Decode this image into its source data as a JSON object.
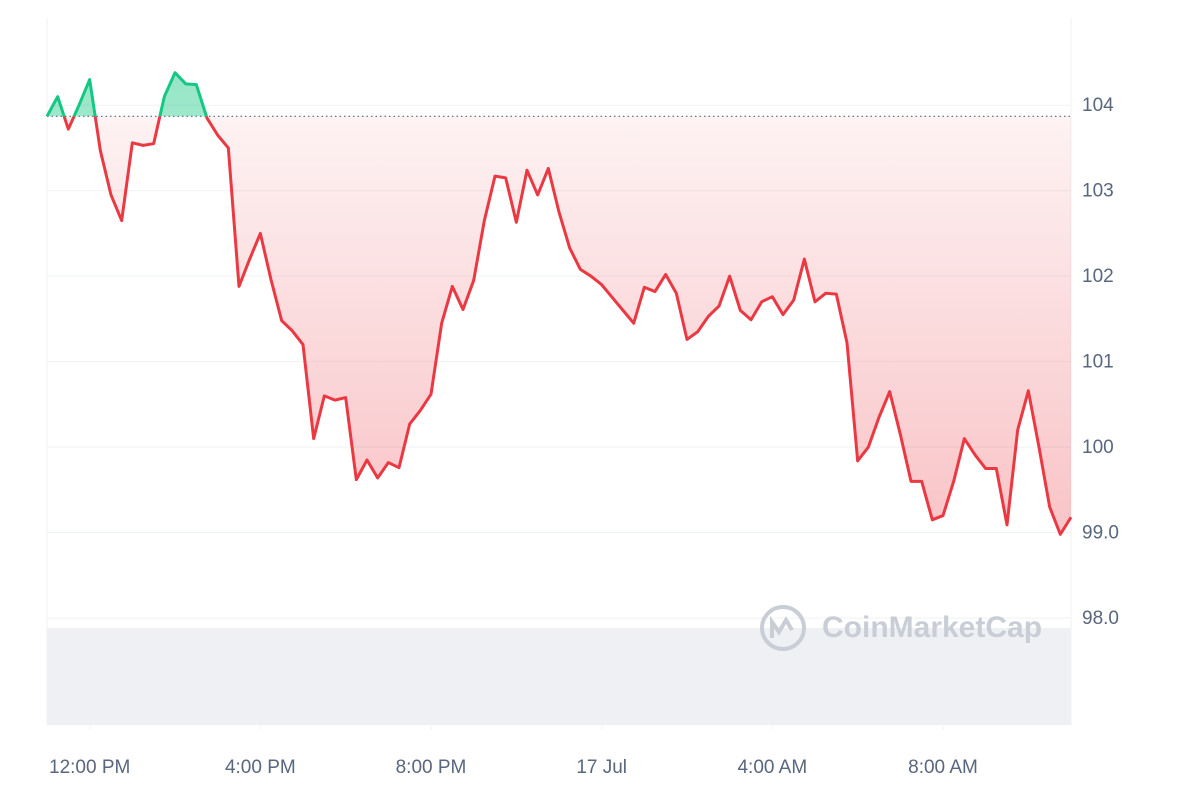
{
  "chart_data": {
    "type": "line",
    "watermark": "CoinMarketCap",
    "x": [
      "16 Jul 11:00",
      "16 Jul 11:15",
      "16 Jul 11:30",
      "16 Jul 11:45",
      "16 Jul 12:00",
      "16 Jul 12:15",
      "16 Jul 12:30",
      "16 Jul 12:45",
      "16 Jul 13:00",
      "16 Jul 13:15",
      "16 Jul 13:30",
      "16 Jul 13:45",
      "16 Jul 14:00",
      "16 Jul 14:15",
      "16 Jul 14:30",
      "16 Jul 14:45",
      "16 Jul 15:00",
      "16 Jul 15:15",
      "16 Jul 15:30",
      "16 Jul 15:45",
      "16 Jul 16:00",
      "16 Jul 16:15",
      "16 Jul 16:30",
      "16 Jul 16:45",
      "16 Jul 17:00",
      "16 Jul 17:15",
      "16 Jul 17:30",
      "16 Jul 17:45",
      "16 Jul 18:00",
      "16 Jul 18:15",
      "16 Jul 18:30",
      "16 Jul 18:45",
      "16 Jul 19:00",
      "16 Jul 19:15",
      "16 Jul 19:30",
      "16 Jul 19:45",
      "16 Jul 20:00",
      "16 Jul 20:15",
      "16 Jul 20:30",
      "16 Jul 20:45",
      "16 Jul 21:00",
      "16 Jul 21:15",
      "16 Jul 21:30",
      "16 Jul 21:45",
      "16 Jul 22:00",
      "16 Jul 22:15",
      "16 Jul 22:30",
      "16 Jul 22:45",
      "16 Jul 23:00",
      "16 Jul 23:15",
      "16 Jul 23:30",
      "16 Jul 23:45",
      "17 Jul 00:00",
      "17 Jul 00:15",
      "17 Jul 00:30",
      "17 Jul 00:45",
      "17 Jul 01:00",
      "17 Jul 01:15",
      "17 Jul 01:30",
      "17 Jul 01:45",
      "17 Jul 02:00",
      "17 Jul 02:15",
      "17 Jul 02:30",
      "17 Jul 02:45",
      "17 Jul 03:00",
      "17 Jul 03:15",
      "17 Jul 03:30",
      "17 Jul 03:45",
      "17 Jul 04:00",
      "17 Jul 04:15",
      "17 Jul 04:30",
      "17 Jul 04:45",
      "17 Jul 05:00",
      "17 Jul 05:15",
      "17 Jul 05:30",
      "17 Jul 05:45",
      "17 Jul 06:00",
      "17 Jul 06:15",
      "17 Jul 06:30",
      "17 Jul 06:45",
      "17 Jul 07:00",
      "17 Jul 07:15",
      "17 Jul 07:30",
      "17 Jul 07:45",
      "17 Jul 08:00",
      "17 Jul 08:15",
      "17 Jul 08:30",
      "17 Jul 08:45",
      "17 Jul 09:00",
      "17 Jul 09:15",
      "17 Jul 09:30",
      "17 Jul 09:45",
      "17 Jul 10:00",
      "17 Jul 10:15",
      "17 Jul 10:30",
      "17 Jul 10:45",
      "17 Jul 11:00"
    ],
    "values": [
      103.87,
      104.1,
      103.72,
      104.0,
      104.3,
      103.47,
      102.95,
      102.65,
      103.56,
      103.53,
      103.55,
      104.1,
      104.38,
      104.25,
      104.24,
      103.85,
      103.65,
      103.5,
      101.88,
      102.2,
      102.5,
      101.96,
      101.48,
      101.36,
      101.2,
      100.1,
      100.6,
      100.55,
      100.58,
      99.62,
      99.85,
      99.64,
      99.82,
      99.76,
      100.27,
      100.43,
      100.62,
      101.45,
      101.88,
      101.61,
      101.95,
      102.65,
      103.17,
      103.15,
      102.63,
      103.24,
      102.95,
      103.26,
      102.75,
      102.33,
      102.08,
      102.0,
      101.9,
      101.75,
      101.6,
      101.45,
      101.87,
      101.82,
      102.02,
      101.8,
      101.26,
      101.35,
      101.53,
      101.65,
      102.0,
      101.6,
      101.49,
      101.7,
      101.76,
      101.55,
      101.72,
      102.2,
      101.7,
      101.8,
      101.79,
      101.22,
      99.84,
      100.0,
      100.35,
      100.65,
      100.15,
      99.6,
      99.6,
      99.15,
      99.2,
      99.6,
      100.1,
      99.91,
      99.75,
      99.75,
      99.09,
      100.2,
      100.66,
      100.0,
      99.3,
      98.98,
      99.18
    ],
    "reference_line": 103.87,
    "colors": {
      "up": "#16c784",
      "down": "#ea3943"
    },
    "xlim": [
      "16 Jul 11:00",
      "17 Jul 11:00"
    ],
    "xticks": [
      {
        "value": "16 Jul 12:00",
        "label": "12:00 PM"
      },
      {
        "value": "16 Jul 16:00",
        "label": "4:00 PM"
      },
      {
        "value": "16 Jul 20:00",
        "label": "8:00 PM"
      },
      {
        "value": "17 Jul 00:00",
        "label": "17 Jul"
      },
      {
        "value": "17 Jul 04:00",
        "label": "4:00 AM"
      },
      {
        "value": "17 Jul 08:00",
        "label": "8:00 AM"
      }
    ],
    "ylim": [
      96.75,
      105.02
    ],
    "yticks": [
      {
        "value": 98,
        "label": "98.0"
      },
      {
        "value": 99,
        "label": "99.0"
      },
      100,
      101,
      102,
      103,
      104
    ],
    "grid": true
  }
}
